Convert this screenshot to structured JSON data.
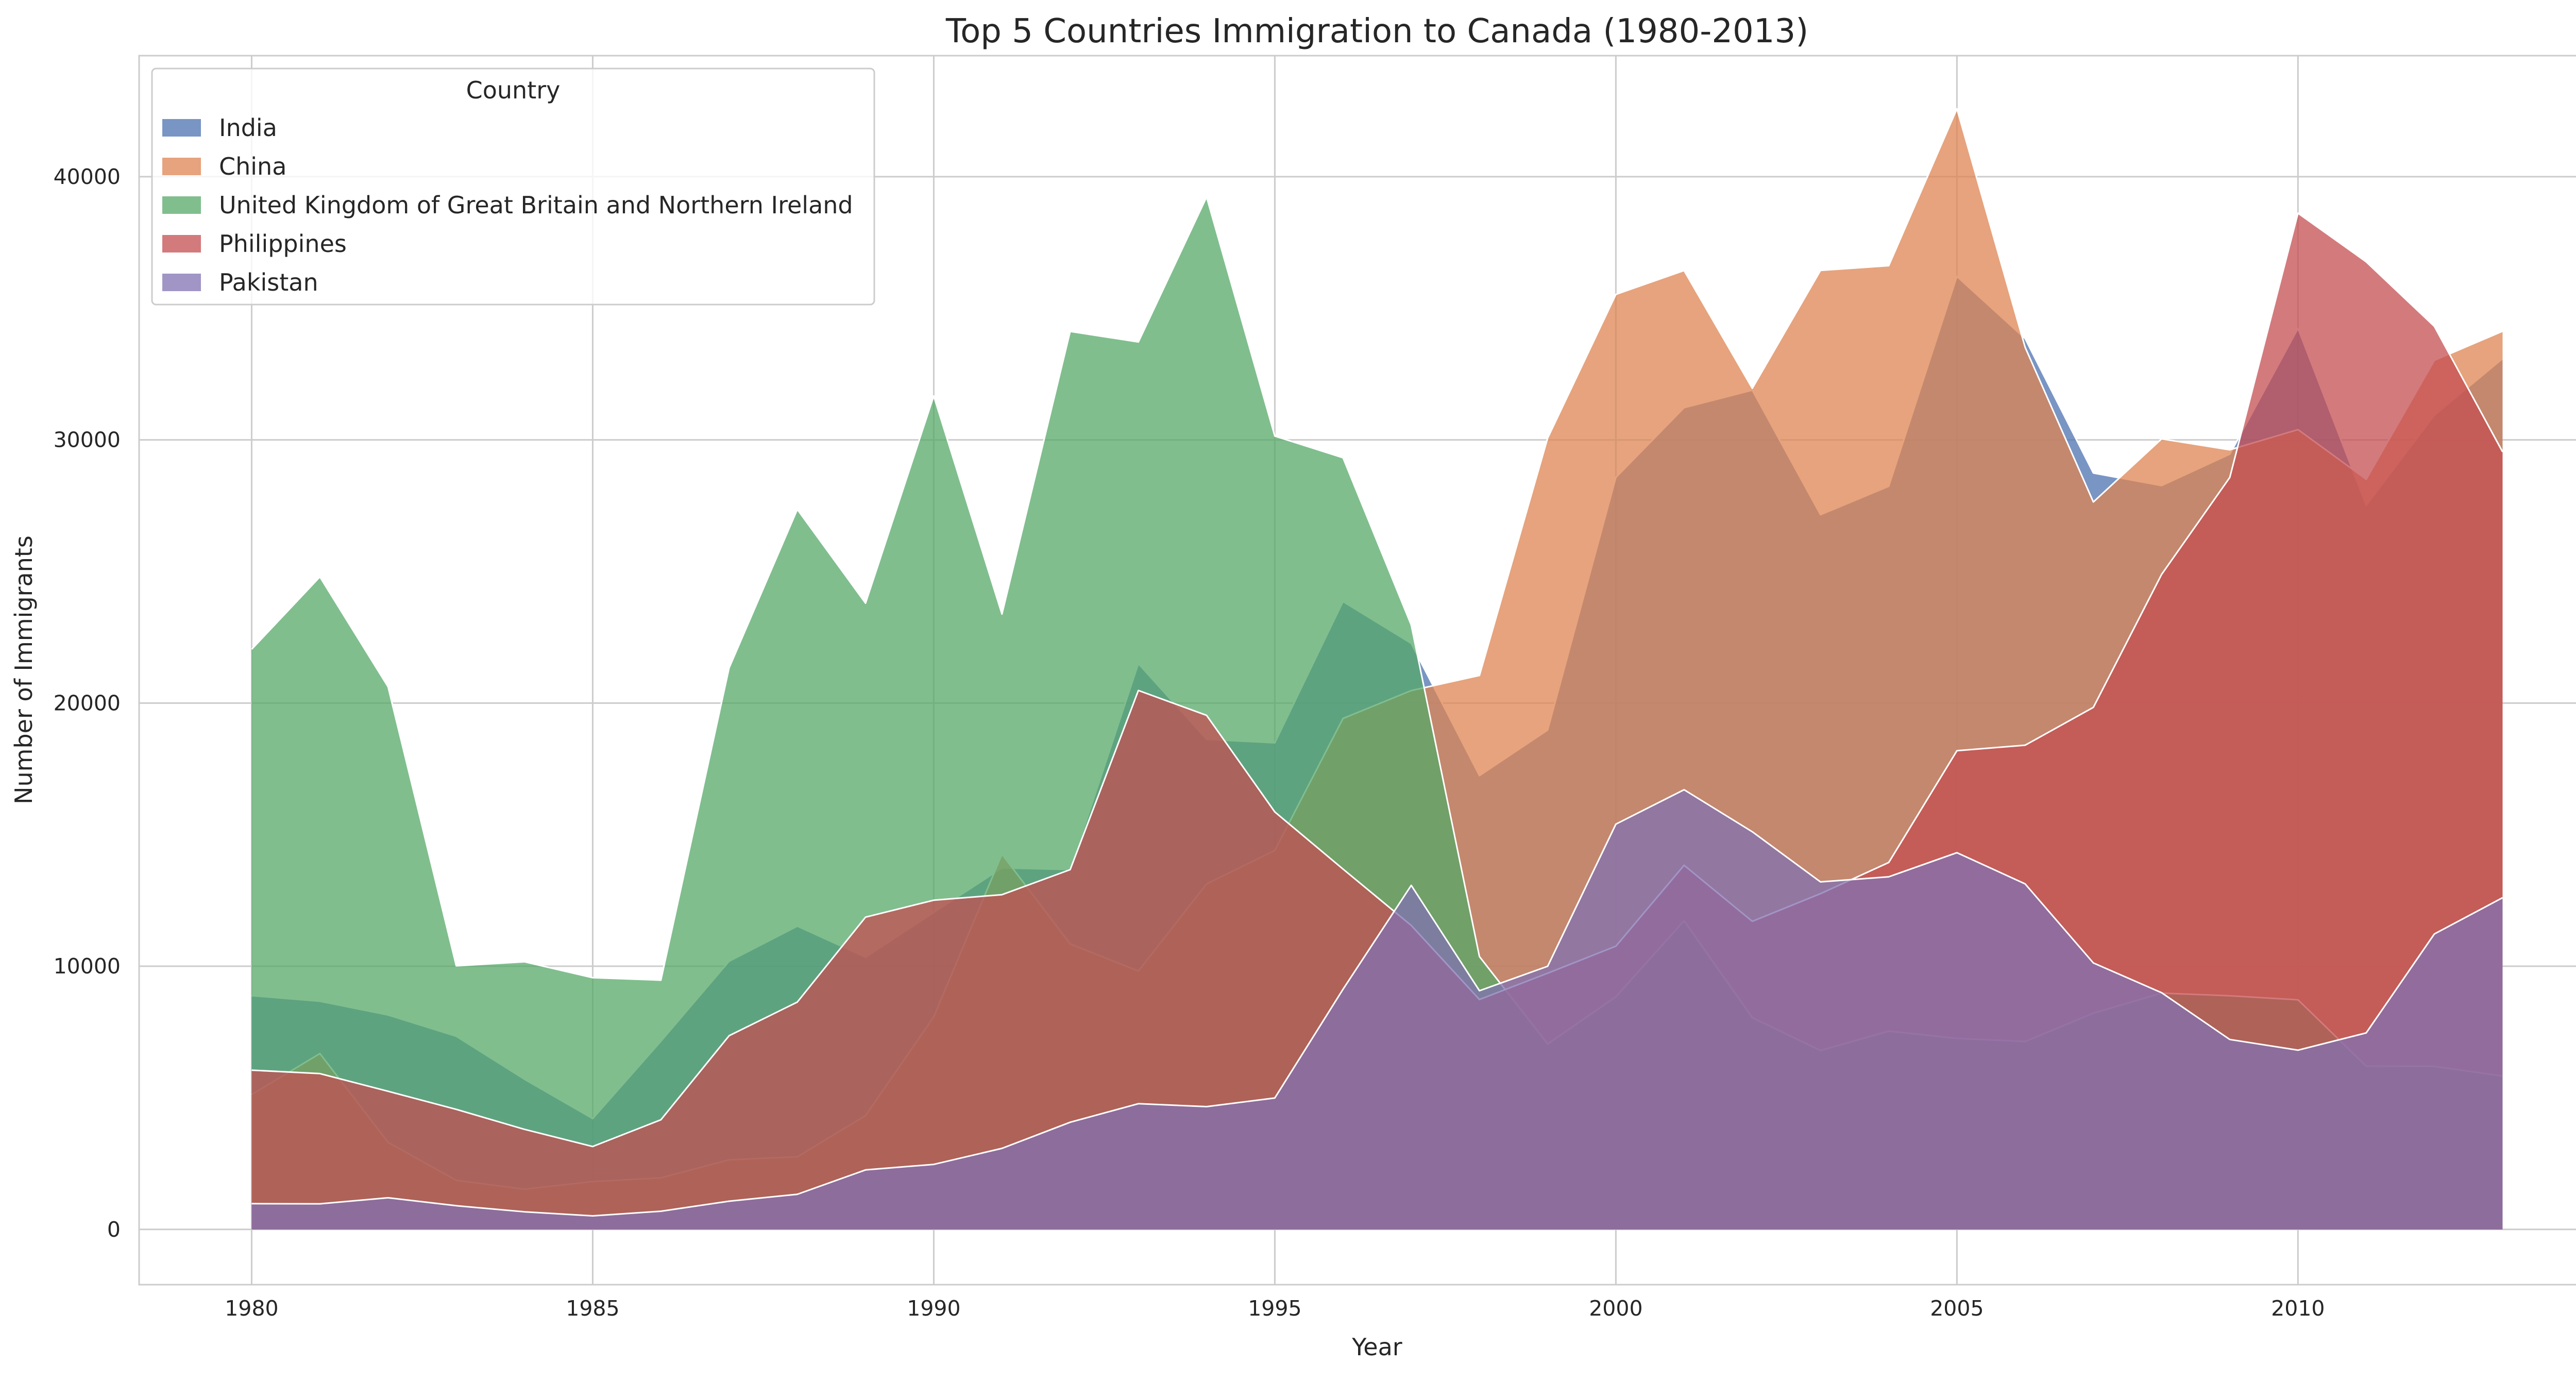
{
  "chart_data": {
    "type": "area",
    "title": "Top 5 Countries Immigration to Canada (1980-2013)",
    "xlabel": "Year",
    "ylabel": "Number of Immigrants",
    "xlim": [
      1978.35,
      2014.65
    ],
    "ylim": [
      -2100,
      44600
    ],
    "x_ticks": [
      1980,
      1985,
      1990,
      1995,
      2000,
      2005,
      2010
    ],
    "y_ticks": [
      0,
      10000,
      20000,
      30000,
      40000
    ],
    "grid": true,
    "stacked": false,
    "alpha": 0.75,
    "legend": {
      "title": "Country",
      "placement": "top-left"
    },
    "x": [
      1980,
      1981,
      1982,
      1983,
      1984,
      1985,
      1986,
      1987,
      1988,
      1989,
      1990,
      1991,
      1992,
      1993,
      1994,
      1995,
      1996,
      1997,
      1998,
      1999,
      2000,
      2001,
      2002,
      2003,
      2004,
      2005,
      2006,
      2007,
      2008,
      2009,
      2010,
      2011,
      2012,
      2013
    ],
    "series": [
      {
        "name": "India",
        "color": "#4c72b0",
        "values": [
          8880,
          8670,
          8147,
          7338,
          5704,
          4211,
          7150,
          10189,
          11522,
          10343,
          12041,
          13734,
          13673,
          21496,
          18620,
          18489,
          23859,
          22268,
          17241,
          18974,
          28572,
          31223,
          31889,
          27155,
          28235,
          36210,
          33848,
          28742,
          28261,
          29456,
          34235,
          27509,
          30933,
          33087
        ]
      },
      {
        "name": "China",
        "color": "#dd8452",
        "values": [
          5123,
          6682,
          3308,
          1863,
          1527,
          1816,
          1960,
          2643,
          2758,
          4323,
          8076,
          14255,
          10846,
          9817,
          13128,
          14398,
          19415,
          20475,
          21049,
          30069,
          35529,
          36434,
          31961,
          36439,
          36619,
          42584,
          33518,
          27642,
          30037,
          29622,
          30391,
          28502,
          33024,
          34129
        ]
      },
      {
        "name": "United Kingdom of Great Britain and Northern Ireland",
        "color": "#55a868",
        "values": [
          22045,
          24796,
          20620,
          10015,
          10170,
          9564,
          9470,
          21337,
          27359,
          23795,
          31668,
          23380,
          34123,
          33720,
          39231,
          30145,
          29322,
          22965,
          10367,
          7045,
          8840,
          11728,
          8046,
          6797,
          7533,
          7258,
          7140,
          8216,
          8979,
          8876,
          8724,
          6204,
          6195,
          5827
        ]
      },
      {
        "name": "Philippines",
        "color": "#c44e52",
        "values": [
          6051,
          5921,
          5249,
          4562,
          3801,
          3150,
          4166,
          7360,
          8639,
          11865,
          12509,
          12718,
          13670,
          20479,
          19532,
          15864,
          13692,
          11549,
          8735,
          9734,
          10763,
          13836,
          11707,
          12758,
          13940,
          18190,
          18400,
          19837,
          24887,
          28573,
          38617,
          36765,
          34315,
          29544
        ]
      },
      {
        "name": "Pakistan",
        "color": "#8172b3",
        "values": [
          978,
          972,
          1201,
          900,
          668,
          514,
          691,
          1072,
          1334,
          2261,
          2470,
          3079,
          4071,
          4777,
          4666,
          4994,
          9125,
          13073,
          9068,
          9999,
          15400,
          16708,
          15110,
          13205,
          13399,
          14314,
          13127,
          10124,
          8994,
          7217,
          6811,
          7468,
          11227,
          12603
        ]
      }
    ]
  }
}
